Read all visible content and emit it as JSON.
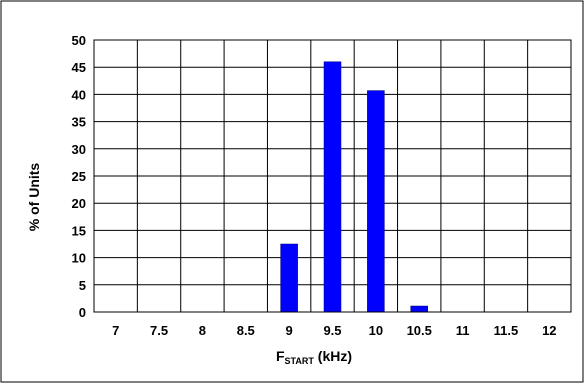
{
  "chart_data": {
    "type": "bar",
    "categories": [
      "7",
      "7.5",
      "8",
      "8.5",
      "9",
      "9.5",
      "10",
      "10.5",
      "11",
      "11.5",
      "12"
    ],
    "values": [
      0,
      0,
      0,
      0,
      12.5,
      46,
      40.7,
      1.1,
      0,
      0,
      0
    ],
    "xlabel_main": "F",
    "xlabel_sub": "START",
    "xlabel_unit": " (kHz)",
    "ylabel": "% of Units",
    "ylim": [
      0,
      50
    ],
    "yticks": [
      "0",
      "5",
      "10",
      "15",
      "20",
      "25",
      "30",
      "35",
      "40",
      "45",
      "50"
    ],
    "grid": true,
    "bar_color": "#0000ff",
    "bar_edge_color": "#000080",
    "grid_color": "#000000"
  }
}
